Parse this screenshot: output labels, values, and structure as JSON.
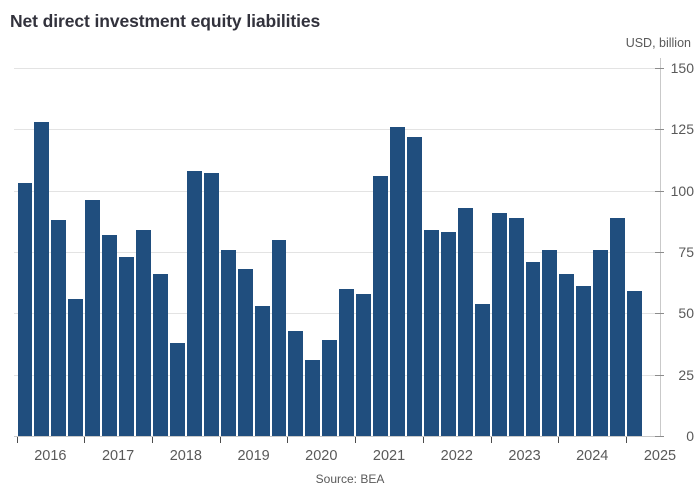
{
  "title": "Net direct investment equity liabilities",
  "axis_unit_label": "USD, billion",
  "source": "Source: BEA",
  "colors": {
    "bar": "#204e7e",
    "title_text": "#32323c",
    "axis_text": "#595959",
    "gridline": "#e3e3e3",
    "axis_line": "#c9c9c9"
  },
  "chart_data": {
    "type": "bar",
    "title": "Net direct investment equity liabilities",
    "ylabel": "USD, billion",
    "xlabel": "",
    "ylim": [
      0,
      150
    ],
    "yticks": [
      0,
      25,
      50,
      75,
      100,
      125,
      150
    ],
    "grid": "horizontal",
    "legend": "none",
    "frequency": "quarterly",
    "x_year_labels": [
      "2016",
      "2017",
      "2018",
      "2019",
      "2020",
      "2021",
      "2022",
      "2023",
      "2024",
      "2025"
    ],
    "categories": [
      "2016 Q1",
      "2016 Q2",
      "2016 Q3",
      "2016 Q4",
      "2017 Q1",
      "2017 Q2",
      "2017 Q3",
      "2017 Q4",
      "2018 Q1",
      "2018 Q2",
      "2018 Q3",
      "2018 Q4",
      "2019 Q1",
      "2019 Q2",
      "2019 Q3",
      "2019 Q4",
      "2020 Q1",
      "2020 Q2",
      "2020 Q3",
      "2020 Q4",
      "2021 Q1",
      "2021 Q2",
      "2021 Q3",
      "2021 Q4",
      "2022 Q1",
      "2022 Q2",
      "2022 Q3",
      "2022 Q4",
      "2023 Q1",
      "2023 Q2",
      "2023 Q3",
      "2023 Q4",
      "2024 Q1",
      "2024 Q2",
      "2024 Q3",
      "2024 Q4",
      "2025 Q1"
    ],
    "values": [
      103,
      128,
      88,
      56,
      96,
      82,
      73,
      84,
      66,
      38,
      108,
      107,
      76,
      68,
      53,
      80,
      43,
      31,
      39,
      60,
      58,
      106,
      126,
      122,
      84,
      83,
      93,
      54,
      91,
      89,
      71,
      76,
      66,
      61,
      76,
      89,
      59
    ]
  }
}
